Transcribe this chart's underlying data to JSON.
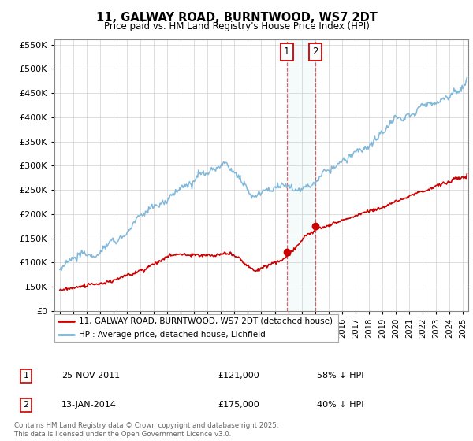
{
  "title": "11, GALWAY ROAD, BURNTWOOD, WS7 2DT",
  "subtitle": "Price paid vs. HM Land Registry's House Price Index (HPI)",
  "legend_line1": "11, GALWAY ROAD, BURNTWOOD, WS7 2DT (detached house)",
  "legend_line2": "HPI: Average price, detached house, Lichfield",
  "transaction1_date": "25-NOV-2011",
  "transaction1_price": "£121,000",
  "transaction1_note": "58% ↓ HPI",
  "transaction2_date": "13-JAN-2014",
  "transaction2_price": "£175,000",
  "transaction2_note": "40% ↓ HPI",
  "footer": "Contains HM Land Registry data © Crown copyright and database right 2025.\nThis data is licensed under the Open Government Licence v3.0.",
  "hpi_color": "#7ab4d8",
  "price_color": "#cc0000",
  "transaction1_x": 2011.9,
  "transaction2_x": 2014.04,
  "transaction1_y": 121000,
  "transaction2_y": 175000,
  "ylim": [
    0,
    560000
  ],
  "yticks": [
    0,
    50000,
    100000,
    150000,
    200000,
    250000,
    300000,
    350000,
    400000,
    450000,
    500000,
    550000
  ],
  "xlim_start": 1994.6,
  "xlim_end": 2025.4,
  "bg_color": "#f0f4f8"
}
